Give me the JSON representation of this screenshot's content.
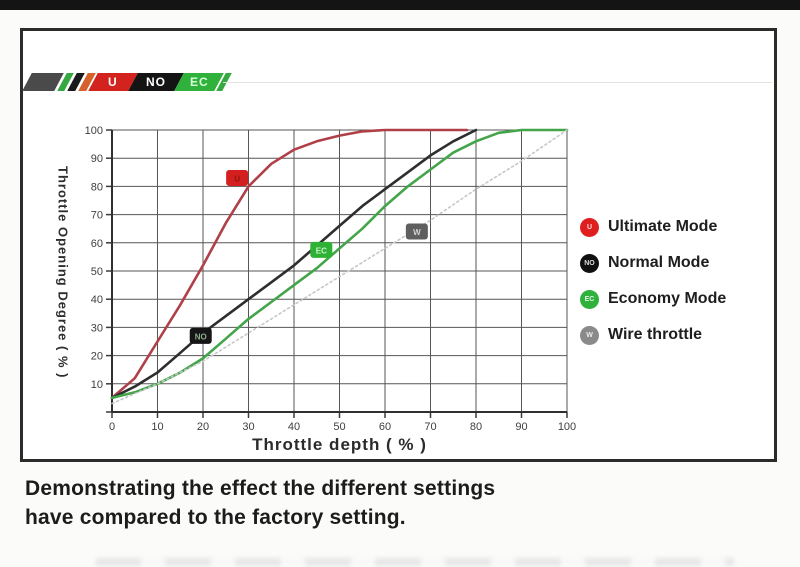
{
  "logo": {
    "blocks": [
      {
        "abbr": "U",
        "color": "#d3231f",
        "text_color": "#ffffff"
      },
      {
        "abbr": "NO",
        "color": "#141414",
        "text_color": "#ffffff"
      },
      {
        "abbr": "EC",
        "color": "#2fb13c",
        "text_color": "#d9ffdb"
      }
    ],
    "slash_colors": [
      "#4a4a4a",
      "#35a93f",
      "#1a1a1a",
      "#d4622a",
      "#35a93f"
    ]
  },
  "legend": {
    "items": [
      {
        "abbr": "U",
        "label": "Ultimate Mode",
        "color": "#df1f1f"
      },
      {
        "abbr": "NO",
        "label": "Normal Mode",
        "color": "#101010"
      },
      {
        "abbr": "EC",
        "label": "Economy Mode",
        "color": "#2fb13c"
      },
      {
        "abbr": "W",
        "label": "Wire throttle",
        "color": "#8a8a8a"
      }
    ]
  },
  "caption": {
    "line1": "Demonstrating the effect the different settings",
    "line2": "have compared to the factory setting."
  },
  "chart_data": {
    "type": "line",
    "title": "",
    "xlabel": "Throttle depth ( % )",
    "ylabel": "Throttle Opening Degree ( % )",
    "xlim": [
      0,
      100
    ],
    "ylim": [
      0,
      100
    ],
    "xticks": [
      0,
      10,
      20,
      30,
      40,
      50,
      60,
      70,
      80,
      90,
      100
    ],
    "yticks": [
      0,
      10,
      20,
      30,
      40,
      50,
      60,
      70,
      80,
      90,
      100
    ],
    "grid": true,
    "legend_position": "right",
    "series": [
      {
        "name": "Ultimate Mode",
        "color": "#b04048",
        "width": 2.6,
        "points": [
          [
            0,
            5
          ],
          [
            5,
            12
          ],
          [
            10,
            25
          ],
          [
            15,
            38
          ],
          [
            20,
            52
          ],
          [
            25,
            67
          ],
          [
            30,
            80
          ],
          [
            35,
            88
          ],
          [
            40,
            93
          ],
          [
            45,
            96
          ],
          [
            50,
            98
          ],
          [
            55,
            99.5
          ],
          [
            60,
            100
          ],
          [
            70,
            100
          ],
          [
            78,
            100
          ]
        ]
      },
      {
        "name": "Normal Mode",
        "color": "#2e2e2e",
        "width": 2.6,
        "points": [
          [
            0,
            5
          ],
          [
            5,
            9
          ],
          [
            10,
            14
          ],
          [
            15,
            21
          ],
          [
            20,
            28
          ],
          [
            25,
            34
          ],
          [
            30,
            40
          ],
          [
            35,
            46
          ],
          [
            40,
            52
          ],
          [
            45,
            59
          ],
          [
            50,
            66
          ],
          [
            55,
            73
          ],
          [
            60,
            79
          ],
          [
            65,
            85
          ],
          [
            70,
            91
          ],
          [
            75,
            96
          ],
          [
            80,
            100
          ]
        ]
      },
      {
        "name": "Economy Mode",
        "color": "#43a549",
        "width": 2.6,
        "points": [
          [
            0,
            5
          ],
          [
            5,
            7
          ],
          [
            10,
            10
          ],
          [
            15,
            14
          ],
          [
            20,
            19
          ],
          [
            25,
            26
          ],
          [
            30,
            33
          ],
          [
            35,
            39
          ],
          [
            40,
            45
          ],
          [
            45,
            51
          ],
          [
            50,
            58
          ],
          [
            55,
            65
          ],
          [
            60,
            73
          ],
          [
            65,
            80
          ],
          [
            70,
            86
          ],
          [
            75,
            92
          ],
          [
            80,
            96
          ],
          [
            85,
            99
          ],
          [
            90,
            100
          ],
          [
            100,
            100
          ]
        ]
      },
      {
        "name": "Wire throttle",
        "color": "#c7c7c7",
        "width": 1.6,
        "dash": "2 3",
        "points": [
          [
            0,
            3
          ],
          [
            10,
            10
          ],
          [
            20,
            18
          ],
          [
            30,
            28
          ],
          [
            40,
            38
          ],
          [
            50,
            48
          ],
          [
            60,
            58
          ],
          [
            70,
            68
          ],
          [
            80,
            79
          ],
          [
            90,
            89
          ],
          [
            100,
            100
          ]
        ]
      }
    ],
    "badges": [
      {
        "label": "U",
        "x": 27.5,
        "y": 83,
        "color": "#d3201e",
        "text_color": "#8e1511"
      },
      {
        "label": "NO",
        "x": 19.5,
        "y": 27,
        "color": "#161616",
        "text_color": "#8fae8f"
      },
      {
        "label": "EC",
        "x": 46,
        "y": 57.5,
        "color": "#2eb135",
        "text_color": "#c8f4c9"
      },
      {
        "label": "W",
        "x": 67,
        "y": 64,
        "color": "#5f5f5f",
        "text_color": "#d2d2d2"
      }
    ]
  }
}
